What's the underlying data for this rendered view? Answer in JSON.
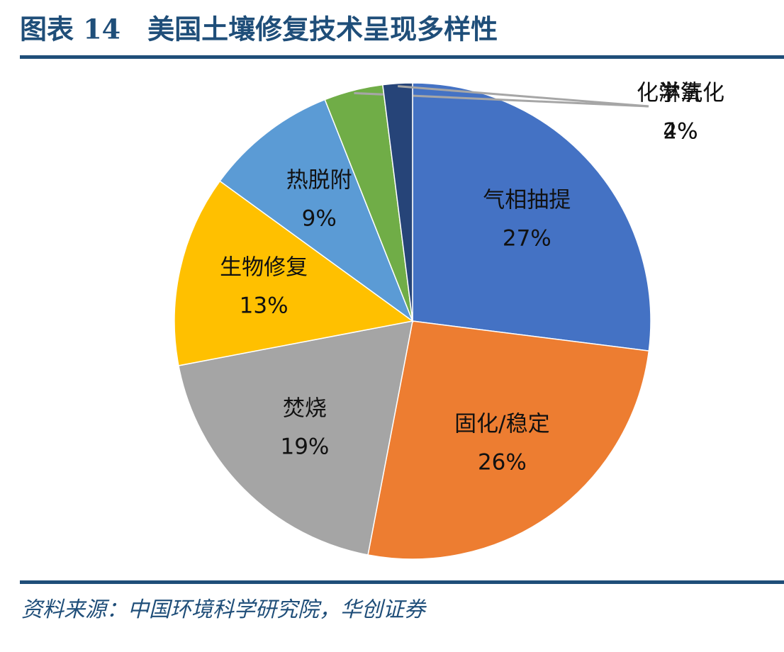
{
  "chart_data": {
    "type": "pie",
    "title": "图表 14　美国土壤修复技术呈现多样性",
    "source": "资料来源：中国环境科学研究院，华创证券",
    "categories": [
      "气相抽提",
      "固化/稳定",
      "焚烧",
      "生物修复",
      "热脱附",
      "化学氧化",
      "淋洗"
    ],
    "values": [
      27,
      26,
      19,
      13,
      9,
      4,
      2
    ],
    "value_labels": [
      "27%",
      "26%",
      "19%",
      "13%",
      "9%",
      "4%",
      "2%"
    ],
    "colors": [
      "#4472c4",
      "#ed7d31",
      "#a5a5a5",
      "#ffc000",
      "#5b9bd5",
      "#70ad47",
      "#264478"
    ]
  }
}
